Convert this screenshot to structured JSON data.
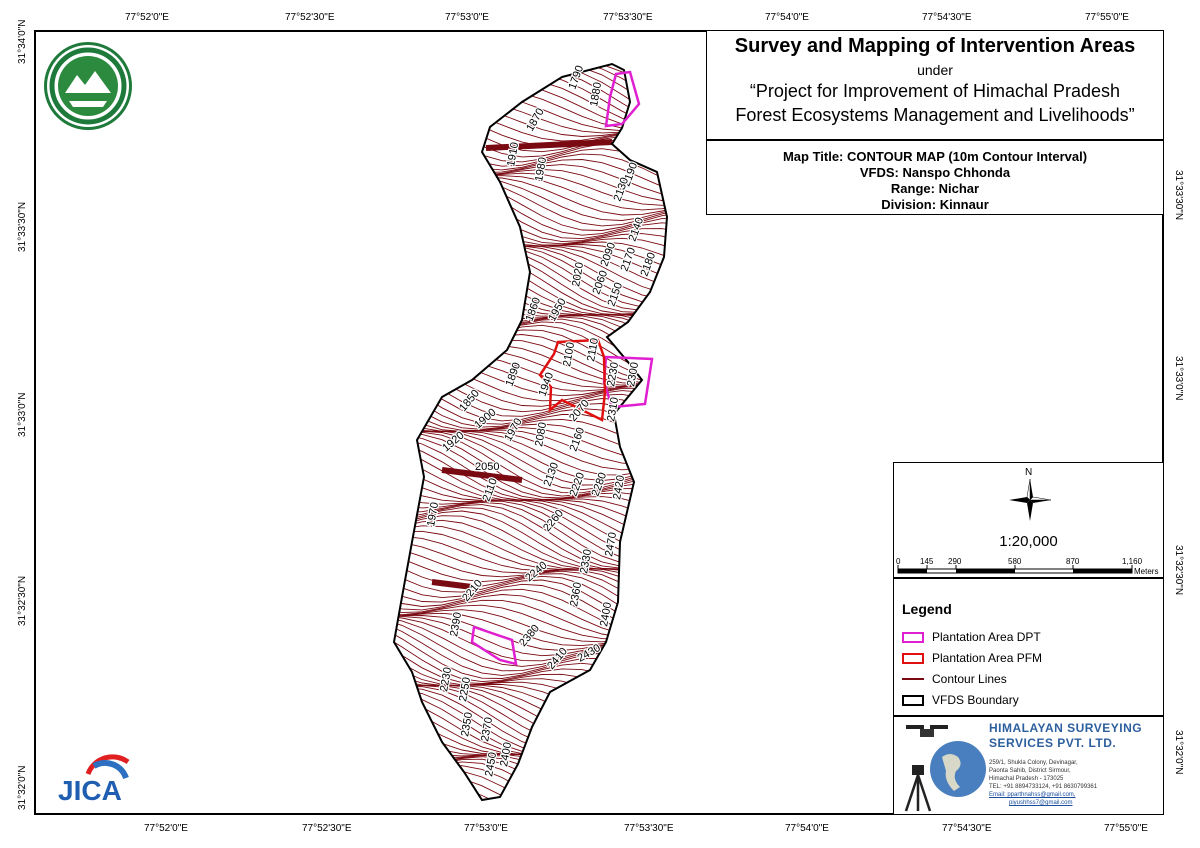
{
  "map_title": {
    "main": "Survey and Mapping of Intervention Areas",
    "under": "under",
    "project_line1": "“Project for Improvement of Himachal Pradesh",
    "project_line2": "Forest Ecosystems Management and Livelihoods”"
  },
  "map_info": {
    "map_title": "Map Title: CONTOUR MAP (10m Contour Interval)",
    "vfds": "VFDS: Nanspo Chhonda",
    "range": "Range: Nichar",
    "division": "Division: Kinnaur"
  },
  "graticule": {
    "top": [
      "77°52'0\"E",
      "77°52'30\"E",
      "77°53'0\"E",
      "77°53'30\"E",
      "77°54'0\"E",
      "77°54'30\"E",
      "77°55'0\"E"
    ],
    "bottom": [
      "77°52'0\"E",
      "77°52'30\"E",
      "77°53'0\"E",
      "77°53'30\"E",
      "77°54'0\"E",
      "77°54'30\"E",
      "77°55'0\"E"
    ],
    "left": [
      "31°34'0\"N",
      "31°33'30\"N",
      "31°33'0\"N",
      "31°32'30\"N",
      "31°32'0\"N"
    ],
    "right": [
      "31°33'30\"N",
      "31°33'0\"N",
      "31°32'30\"N",
      "31°32'0\"N"
    ]
  },
  "contour_labels": [
    "1790",
    "1880",
    "1870",
    "1910",
    "1980",
    "2190",
    "2130",
    "2140",
    "2090",
    "2170",
    "2180",
    "2020",
    "2060",
    "2150",
    "1860",
    "1950",
    "2110",
    "2100",
    "2230",
    "2300",
    "1940",
    "1890",
    "1850",
    "1900",
    "2070",
    "2310",
    "1920",
    "1970",
    "2080",
    "2050",
    "2160",
    "2130",
    "2220",
    "2280",
    "2420",
    "2110",
    "1970",
    "2260",
    "2470",
    "2240",
    "2330",
    "2210",
    "2380",
    "2360",
    "2400",
    "2390",
    "2410",
    "2430",
    "2230",
    "2250",
    "2350",
    "2370",
    "2450",
    "2400"
  ],
  "scale": {
    "north_label": "N",
    "ratio": "1:20,000",
    "ticks": [
      "0",
      "145",
      "290",
      "580",
      "870",
      "1,160"
    ],
    "unit": "Meters"
  },
  "legend": {
    "title": "Legend",
    "items": [
      {
        "label": "Plantation Area DPT",
        "color": "#e020d0"
      },
      {
        "label": "Plantation Area PFM",
        "color": "#e01010"
      },
      {
        "label": "Contour Lines",
        "color": "#7a0a12"
      },
      {
        "label": "VFDS Boundary",
        "color": "#000000"
      }
    ]
  },
  "company": {
    "name_line1": "HIMALAYAN SURVEYING",
    "name_line2": "SERVICES PVT. LTD.",
    "address1": "259/1, Shukla Colony, Devinagar,",
    "address2": "Paonta Sahib, District Sirmour,",
    "address3": "Himachal Pradesh - 173025",
    "tel": "TEL: +91 8894733124, +91 8630799361",
    "email1": "Email: pparthnahss@gmail.com,",
    "email2": "piyushhss7@gmail.com"
  },
  "logos": {
    "forest_dept_text": "वन ही जल है, जल ही जीवन है, वन विभाग हिमाचल प्रदेश",
    "jica": "JICA"
  },
  "colors": {
    "contour": "#7a0a12",
    "dpt": "#e020d0",
    "pfm": "#e01010",
    "title_blue": "#2d5f9e"
  }
}
